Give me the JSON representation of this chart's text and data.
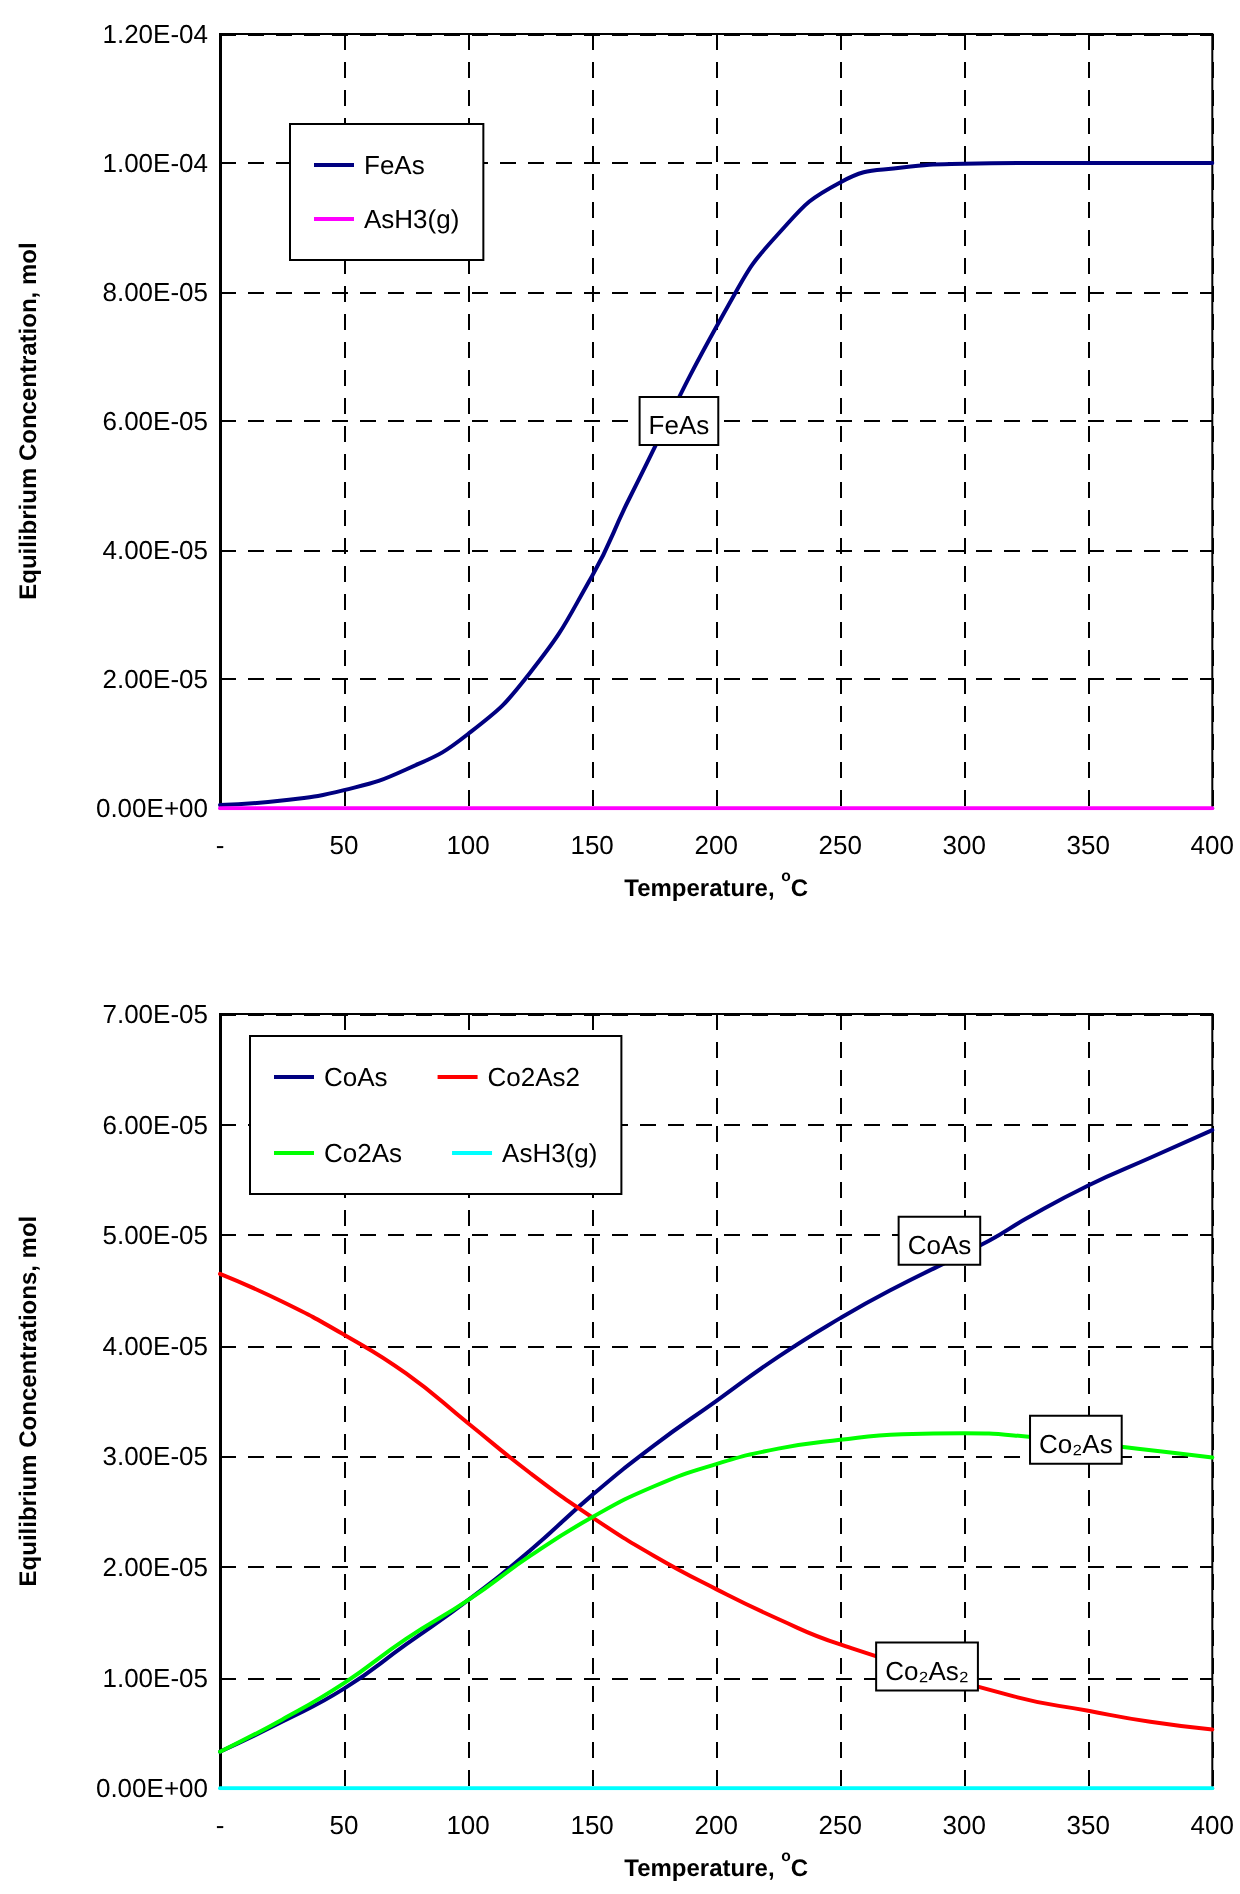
{
  "chart_data": [
    {
      "type": "line",
      "xlabel": "Temperature, $^{o}$C",
      "ylabel": "Equilibrium Concentration, mol",
      "series": [
        {
          "name": "FeAs",
          "color": "#000080",
          "x": [
            0,
            25,
            50,
            75,
            100,
            125,
            150,
            165,
            205,
            225,
            250,
            275,
            300,
            325,
            350,
            375,
            400
          ],
          "values": [
            5e-07,
            1.2e-06,
            2.8e-06,
            6e-06,
            1.15e-05,
            2.1e-05,
            3.6e-05,
            4.8e-05,
            7.8e-05,
            8.9e-05,
            9.7e-05,
            9.93e-05,
            9.99e-05,
            0.0001,
            0.0001,
            0.0001,
            0.0001
          ]
        },
        {
          "name": "AsH3(g)",
          "color": "#ff00ff",
          "x": [
            0,
            400
          ],
          "values": [
            0,
            0
          ]
        }
      ],
      "xlim": [
        0,
        400
      ],
      "xticks": [
        {
          "value": 0,
          "label": "-"
        },
        50,
        100,
        150,
        200,
        250,
        300,
        350,
        400
      ],
      "ylim": [
        0,
        0.00012
      ],
      "yticks": [
        {
          "value": 0,
          "label": "0.00E+00"
        },
        {
          "value": 2e-05,
          "label": "2.00E-05"
        },
        {
          "value": 4e-05,
          "label": "4.00E-05"
        },
        {
          "value": 6e-05,
          "label": "6.00E-05"
        },
        {
          "value": 8e-05,
          "label": "8.00E-05"
        },
        {
          "value": 0.0001,
          "label": "1.00E-04"
        },
        {
          "value": 0.00012,
          "label": "1.20E-04"
        }
      ],
      "grid": true,
      "legend": "top left",
      "marker": "none",
      "line_style": "solid",
      "annotations": [
        {
          "text": "FeAs",
          "x": 185,
          "y": 6e-05
        }
      ]
    },
    {
      "type": "line",
      "xlabel": "Temperature, $^{o}$C",
      "ylabel": "Equilibrium Concentrations, mol",
      "series": [
        {
          "name": "CoAs",
          "color": "#000080",
          "x": [
            0,
            25,
            50,
            75,
            100,
            125,
            150,
            175,
            200,
            225,
            250,
            270,
            310,
            325,
            350,
            375,
            400
          ],
          "values": [
            3.3e-06,
            6e-06,
            9e-06,
            1.3e-05,
            1.7e-05,
            2.15e-05,
            2.65e-05,
            3.1e-05,
            3.5e-05,
            3.9e-05,
            4.25e-05,
            4.5e-05,
            4.95e-05,
            5.15e-05,
            5.45e-05,
            5.7e-05,
            5.95e-05
          ]
        },
        {
          "name": "Co2As2",
          "color": "#ff0000",
          "x": [
            0,
            25,
            50,
            75,
            100,
            125,
            150,
            175,
            200,
            225,
            250,
            320,
            350,
            375,
            400
          ],
          "values": [
            4.65e-05,
            4.4e-05,
            4.1e-05,
            3.75e-05,
            3.3e-05,
            2.85e-05,
            2.45e-05,
            2.1e-05,
            1.8e-05,
            1.53e-05,
            1.3e-05,
            8.3e-06,
            7e-06,
            6e-06,
            5.3e-06
          ]
        },
        {
          "name": "Co2As",
          "color": "#00ff00",
          "x": [
            0,
            25,
            50,
            75,
            100,
            125,
            150,
            175,
            200,
            225,
            250,
            275,
            300,
            320,
            370,
            400
          ],
          "values": [
            3.3e-06,
            6.2e-06,
            9.5e-06,
            1.35e-05,
            1.7e-05,
            2.1e-05,
            2.45e-05,
            2.73e-05,
            2.93e-05,
            3.07e-05,
            3.15e-05,
            3.2e-05,
            3.21e-05,
            3.19e-05,
            3.07e-05,
            2.99e-05
          ]
        },
        {
          "name": "AsH3(g)",
          "color": "#00ffff",
          "x": [
            0,
            400
          ],
          "values": [
            0,
            0
          ]
        }
      ],
      "xlim": [
        0,
        400
      ],
      "xticks": [
        {
          "value": 0,
          "label": "-"
        },
        50,
        100,
        150,
        200,
        250,
        300,
        350,
        400
      ],
      "ylim": [
        0,
        7e-05
      ],
      "yticks": [
        {
          "value": 0,
          "label": "0.00E+00"
        },
        {
          "value": 1e-05,
          "label": "1.00E-05"
        },
        {
          "value": 2e-05,
          "label": "2.00E-05"
        },
        {
          "value": 3e-05,
          "label": "3.00E-05"
        },
        {
          "value": 4e-05,
          "label": "4.00E-05"
        },
        {
          "value": 5e-05,
          "label": "5.00E-05"
        },
        {
          "value": 6e-05,
          "label": "6.00E-05"
        },
        {
          "value": 7e-05,
          "label": "7.00E-05"
        }
      ],
      "grid": true,
      "legend": "top left",
      "marker": "none",
      "line_style": "solid",
      "annotations": [
        {
          "text": "CoAs",
          "x": 290,
          "y": 4.95e-05
        },
        {
          "text": "Co₂As",
          "x": 345,
          "y": 3.15e-05
        },
        {
          "text": "Co₂As₂",
          "x": 285,
          "y": 1.1e-05
        }
      ]
    }
  ]
}
